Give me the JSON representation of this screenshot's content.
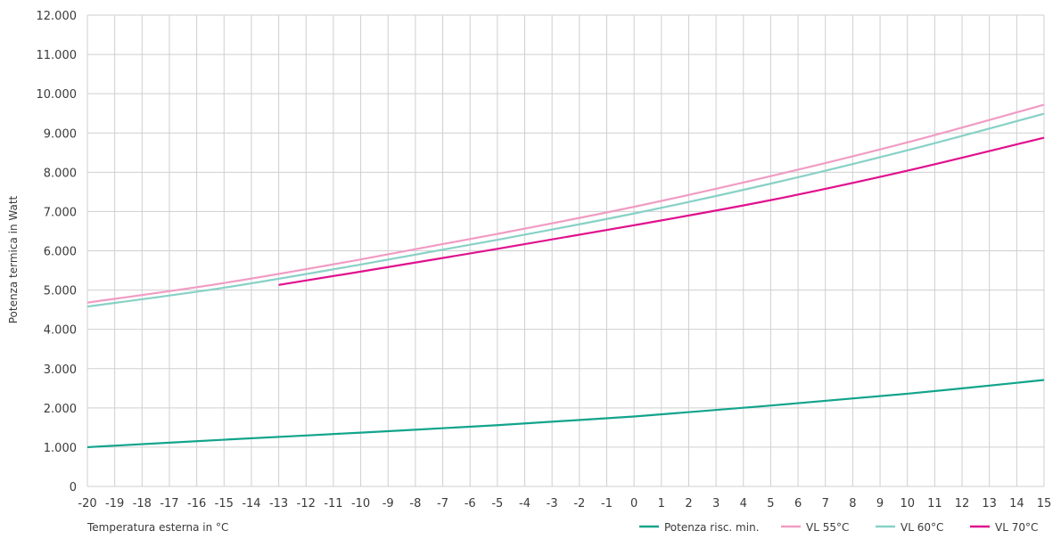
{
  "chart_data": {
    "type": "line",
    "title": "",
    "xlabel": "Temperatura esterna in °C",
    "ylabel": "Potenza termica in Watt",
    "xlim": [
      -20,
      15
    ],
    "ylim": [
      0,
      12000
    ],
    "grid": true,
    "legend_position": "bottom-right",
    "x_ticks": [
      -20,
      -19,
      -18,
      -17,
      -16,
      -15,
      -14,
      -13,
      -12,
      -11,
      -10,
      -9,
      -8,
      -7,
      -6,
      -5,
      -4,
      -3,
      -2,
      -1,
      0,
      1,
      2,
      3,
      4,
      5,
      6,
      7,
      8,
      9,
      10,
      11,
      12,
      13,
      14,
      15
    ],
    "x_tick_labels": [
      "-20",
      "-19",
      "-18",
      "-17",
      "-16",
      "-15",
      "-14",
      "-13",
      "-12",
      "-11",
      "-10",
      "-9",
      "-8",
      "-7",
      "-6",
      "-5",
      "-4",
      "-3",
      "-2",
      "-1",
      "0",
      "1",
      "2",
      "3",
      "4",
      "5",
      "6",
      "7",
      "8",
      "9",
      "10",
      "11",
      "12",
      "13",
      "14",
      "15"
    ],
    "y_ticks": [
      0,
      1000,
      2000,
      3000,
      4000,
      5000,
      6000,
      7000,
      8000,
      9000,
      10000,
      11000,
      12000
    ],
    "y_tick_labels": [
      "0",
      "1.000",
      "2.000",
      "3.000",
      "4.000",
      "5.000",
      "6.000",
      "7.000",
      "8.000",
      "9.000",
      "10.000",
      "11.000",
      "12.000"
    ],
    "series": [
      {
        "name": "Potenza risc. min.",
        "color": "#12a48c",
        "x": [
          -20,
          -15,
          -10,
          -5,
          0,
          5,
          10,
          15
        ],
        "values": [
          1000,
          1190,
          1370,
          1560,
          1780,
          2060,
          2360,
          2710
        ]
      },
      {
        "name": "VL 55°C",
        "color": "#f09cc4",
        "x": [
          -20,
          -15,
          -10,
          -5,
          0,
          5,
          10,
          15
        ],
        "values": [
          4680,
          5180,
          5780,
          6430,
          7120,
          7900,
          8760,
          9720
        ]
      },
      {
        "name": "VL 60°C",
        "color": "#88d1c7",
        "x": [
          -20,
          -15,
          -10,
          -5,
          0,
          5,
          10,
          15
        ],
        "values": [
          4580,
          5060,
          5650,
          6280,
          6950,
          7710,
          8560,
          9490
        ]
      },
      {
        "name": "VL 70°C",
        "color": "#e0118e",
        "x": [
          -13,
          -10,
          -5,
          0,
          5,
          10,
          15
        ],
        "values": [
          5130,
          5470,
          6050,
          6650,
          7290,
          8040,
          8880
        ]
      }
    ]
  }
}
